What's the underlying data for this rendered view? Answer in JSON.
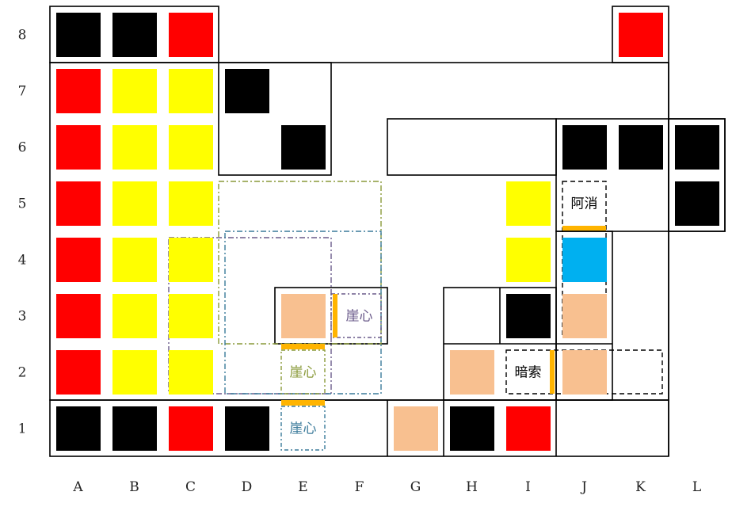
{
  "board": {
    "columns": [
      "A",
      "B",
      "C",
      "D",
      "E",
      "F",
      "G",
      "H",
      "I",
      "J",
      "K",
      "L"
    ],
    "rows": [
      "8",
      "7",
      "6",
      "5",
      "4",
      "3",
      "2",
      "1"
    ],
    "colors": {
      "black": "#000000",
      "red": "#ff0000",
      "yellow": "#ffff00",
      "peach": "#f8c090",
      "blue": "#00b0f0",
      "orange": "#ffb400",
      "olive": "#8a9a3a",
      "purple": "#6a5a8a",
      "teal": "#3a7a9a"
    },
    "pieces": [
      {
        "col": "A",
        "row": "8",
        "color": "black"
      },
      {
        "col": "B",
        "row": "8",
        "color": "black"
      },
      {
        "col": "C",
        "row": "8",
        "color": "red"
      },
      {
        "col": "K",
        "row": "8",
        "color": "red"
      },
      {
        "col": "A",
        "row": "7",
        "color": "red"
      },
      {
        "col": "B",
        "row": "7",
        "color": "yellow"
      },
      {
        "col": "C",
        "row": "7",
        "color": "yellow"
      },
      {
        "col": "D",
        "row": "7",
        "color": "black"
      },
      {
        "col": "A",
        "row": "6",
        "color": "red"
      },
      {
        "col": "B",
        "row": "6",
        "color": "yellow"
      },
      {
        "col": "C",
        "row": "6",
        "color": "yellow"
      },
      {
        "col": "E",
        "row": "6",
        "color": "black"
      },
      {
        "col": "J",
        "row": "6",
        "color": "black"
      },
      {
        "col": "K",
        "row": "6",
        "color": "black"
      },
      {
        "col": "L",
        "row": "6",
        "color": "black"
      },
      {
        "col": "A",
        "row": "5",
        "color": "red"
      },
      {
        "col": "B",
        "row": "5",
        "color": "yellow"
      },
      {
        "col": "C",
        "row": "5",
        "color": "yellow"
      },
      {
        "col": "I",
        "row": "5",
        "color": "yellow"
      },
      {
        "col": "L",
        "row": "5",
        "color": "black"
      },
      {
        "col": "A",
        "row": "4",
        "color": "red"
      },
      {
        "col": "B",
        "row": "4",
        "color": "yellow"
      },
      {
        "col": "C",
        "row": "4",
        "color": "yellow"
      },
      {
        "col": "I",
        "row": "4",
        "color": "yellow"
      },
      {
        "col": "J",
        "row": "4",
        "color": "blue"
      },
      {
        "col": "A",
        "row": "3",
        "color": "red"
      },
      {
        "col": "B",
        "row": "3",
        "color": "yellow"
      },
      {
        "col": "C",
        "row": "3",
        "color": "yellow"
      },
      {
        "col": "E",
        "row": "3",
        "color": "peach"
      },
      {
        "col": "I",
        "row": "3",
        "color": "black"
      },
      {
        "col": "J",
        "row": "3",
        "color": "peach"
      },
      {
        "col": "A",
        "row": "2",
        "color": "red"
      },
      {
        "col": "B",
        "row": "2",
        "color": "yellow"
      },
      {
        "col": "C",
        "row": "2",
        "color": "yellow"
      },
      {
        "col": "H",
        "row": "2",
        "color": "peach"
      },
      {
        "col": "J",
        "row": "2",
        "color": "peach"
      },
      {
        "col": "A",
        "row": "1",
        "color": "black"
      },
      {
        "col": "B",
        "row": "1",
        "color": "black"
      },
      {
        "col": "C",
        "row": "1",
        "color": "red"
      },
      {
        "col": "D",
        "row": "1",
        "color": "black"
      },
      {
        "col": "G",
        "row": "1",
        "color": "peach"
      },
      {
        "col": "H",
        "row": "1",
        "color": "black"
      },
      {
        "col": "I",
        "row": "1",
        "color": "red"
      }
    ],
    "labels": [
      {
        "col": "F",
        "row": "3",
        "text": "崖心",
        "color": "purple"
      },
      {
        "col": "E",
        "row": "2",
        "text": "崖心",
        "color": "olive"
      },
      {
        "col": "E",
        "row": "1",
        "text": "崖心",
        "color": "teal"
      },
      {
        "col": "J",
        "row": "5",
        "text": "阿消",
        "color": "black"
      },
      {
        "col": "I",
        "row": "2",
        "text": "暗索",
        "color": "black"
      }
    ]
  }
}
